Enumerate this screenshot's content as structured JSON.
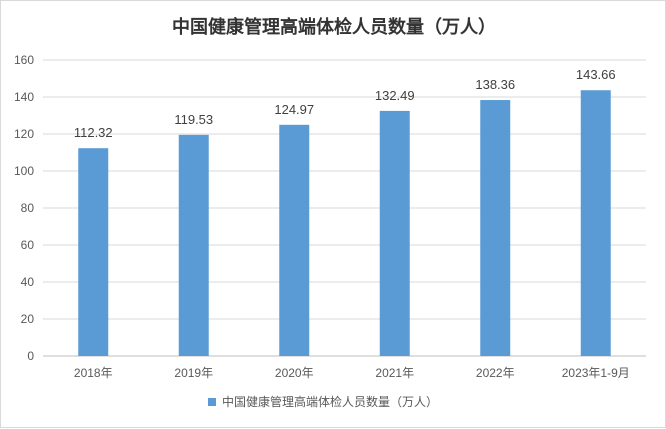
{
  "chart_data": {
    "type": "bar",
    "title": "中国健康管理高端体检人员数量（万人）",
    "categories": [
      "2018年",
      "2019年",
      "2020年",
      "2021年",
      "2022年",
      "2023年1-9月"
    ],
    "series": [
      {
        "name": "中国健康管理高端体检人员数量（万人）",
        "values": [
          112.32,
          119.53,
          124.97,
          132.49,
          138.36,
          143.66
        ]
      }
    ],
    "data_labels": [
      "112.32",
      "119.53",
      "124.97",
      "132.49",
      "138.36",
      "143.66"
    ],
    "ylim": [
      0,
      160
    ],
    "yticks": [
      "0",
      "20",
      "40",
      "60",
      "80",
      "100",
      "120",
      "140",
      "160"
    ],
    "grid": true,
    "legend_position": "bottom",
    "colors": {
      "bar": "#5b9bd5",
      "grid": "#d9d9d9",
      "axis": "#bfbfbf"
    }
  }
}
